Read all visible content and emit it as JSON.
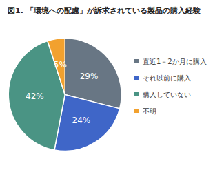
{
  "chart_data": {
    "type": "pie",
    "title": "図1. 「環境への配慮」が訴求されている製品の購入経験",
    "categories": [
      "直近1－2か月に購入",
      "それ以前に購入",
      "購入していない",
      "不明"
    ],
    "values": [
      29,
      24,
      42,
      5
    ],
    "value_labels": [
      "29%",
      "24%",
      "42%",
      "5%"
    ],
    "colors": [
      "#687684",
      "#3f66c8",
      "#4a9484",
      "#f2a12e"
    ],
    "data_labels": true,
    "legend": "right"
  }
}
